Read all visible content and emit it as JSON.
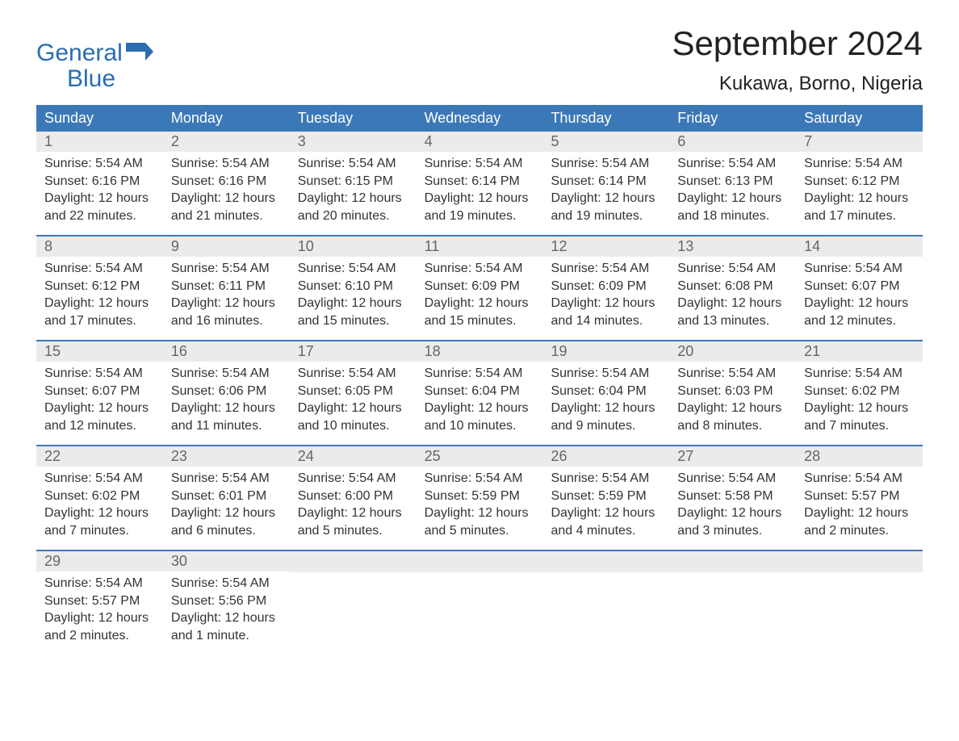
{
  "logo": {
    "line1": "General",
    "line2": "Blue",
    "flag_color": "#2a6db0"
  },
  "title": "September 2024",
  "location": "Kukawa, Borno, Nigeria",
  "header_bg": "#3b78b8",
  "weekdays": [
    "Sunday",
    "Monday",
    "Tuesday",
    "Wednesday",
    "Thursday",
    "Friday",
    "Saturday"
  ],
  "labels": {
    "sunrise": "Sunrise:",
    "sunset": "Sunset:",
    "daylight": "Daylight:"
  },
  "weeks": [
    [
      {
        "num": "1",
        "sunrise": "5:54 AM",
        "sunset": "6:16 PM",
        "daylight": "12 hours and 22 minutes."
      },
      {
        "num": "2",
        "sunrise": "5:54 AM",
        "sunset": "6:16 PM",
        "daylight": "12 hours and 21 minutes."
      },
      {
        "num": "3",
        "sunrise": "5:54 AM",
        "sunset": "6:15 PM",
        "daylight": "12 hours and 20 minutes."
      },
      {
        "num": "4",
        "sunrise": "5:54 AM",
        "sunset": "6:14 PM",
        "daylight": "12 hours and 19 minutes."
      },
      {
        "num": "5",
        "sunrise": "5:54 AM",
        "sunset": "6:14 PM",
        "daylight": "12 hours and 19 minutes."
      },
      {
        "num": "6",
        "sunrise": "5:54 AM",
        "sunset": "6:13 PM",
        "daylight": "12 hours and 18 minutes."
      },
      {
        "num": "7",
        "sunrise": "5:54 AM",
        "sunset": "6:12 PM",
        "daylight": "12 hours and 17 minutes."
      }
    ],
    [
      {
        "num": "8",
        "sunrise": "5:54 AM",
        "sunset": "6:12 PM",
        "daylight": "12 hours and 17 minutes."
      },
      {
        "num": "9",
        "sunrise": "5:54 AM",
        "sunset": "6:11 PM",
        "daylight": "12 hours and 16 minutes."
      },
      {
        "num": "10",
        "sunrise": "5:54 AM",
        "sunset": "6:10 PM",
        "daylight": "12 hours and 15 minutes."
      },
      {
        "num": "11",
        "sunrise": "5:54 AM",
        "sunset": "6:09 PM",
        "daylight": "12 hours and 15 minutes."
      },
      {
        "num": "12",
        "sunrise": "5:54 AM",
        "sunset": "6:09 PM",
        "daylight": "12 hours and 14 minutes."
      },
      {
        "num": "13",
        "sunrise": "5:54 AM",
        "sunset": "6:08 PM",
        "daylight": "12 hours and 13 minutes."
      },
      {
        "num": "14",
        "sunrise": "5:54 AM",
        "sunset": "6:07 PM",
        "daylight": "12 hours and 12 minutes."
      }
    ],
    [
      {
        "num": "15",
        "sunrise": "5:54 AM",
        "sunset": "6:07 PM",
        "daylight": "12 hours and 12 minutes."
      },
      {
        "num": "16",
        "sunrise": "5:54 AM",
        "sunset": "6:06 PM",
        "daylight": "12 hours and 11 minutes."
      },
      {
        "num": "17",
        "sunrise": "5:54 AM",
        "sunset": "6:05 PM",
        "daylight": "12 hours and 10 minutes."
      },
      {
        "num": "18",
        "sunrise": "5:54 AM",
        "sunset": "6:04 PM",
        "daylight": "12 hours and 10 minutes."
      },
      {
        "num": "19",
        "sunrise": "5:54 AM",
        "sunset": "6:04 PM",
        "daylight": "12 hours and 9 minutes."
      },
      {
        "num": "20",
        "sunrise": "5:54 AM",
        "sunset": "6:03 PM",
        "daylight": "12 hours and 8 minutes."
      },
      {
        "num": "21",
        "sunrise": "5:54 AM",
        "sunset": "6:02 PM",
        "daylight": "12 hours and 7 minutes."
      }
    ],
    [
      {
        "num": "22",
        "sunrise": "5:54 AM",
        "sunset": "6:02 PM",
        "daylight": "12 hours and 7 minutes."
      },
      {
        "num": "23",
        "sunrise": "5:54 AM",
        "sunset": "6:01 PM",
        "daylight": "12 hours and 6 minutes."
      },
      {
        "num": "24",
        "sunrise": "5:54 AM",
        "sunset": "6:00 PM",
        "daylight": "12 hours and 5 minutes."
      },
      {
        "num": "25",
        "sunrise": "5:54 AM",
        "sunset": "5:59 PM",
        "daylight": "12 hours and 5 minutes."
      },
      {
        "num": "26",
        "sunrise": "5:54 AM",
        "sunset": "5:59 PM",
        "daylight": "12 hours and 4 minutes."
      },
      {
        "num": "27",
        "sunrise": "5:54 AM",
        "sunset": "5:58 PM",
        "daylight": "12 hours and 3 minutes."
      },
      {
        "num": "28",
        "sunrise": "5:54 AM",
        "sunset": "5:57 PM",
        "daylight": "12 hours and 2 minutes."
      }
    ],
    [
      {
        "num": "29",
        "sunrise": "5:54 AM",
        "sunset": "5:57 PM",
        "daylight": "12 hours and 2 minutes."
      },
      {
        "num": "30",
        "sunrise": "5:54 AM",
        "sunset": "5:56 PM",
        "daylight": "12 hours and 1 minute."
      },
      {
        "empty": true
      },
      {
        "empty": true
      },
      {
        "empty": true
      },
      {
        "empty": true
      },
      {
        "empty": true
      }
    ]
  ]
}
